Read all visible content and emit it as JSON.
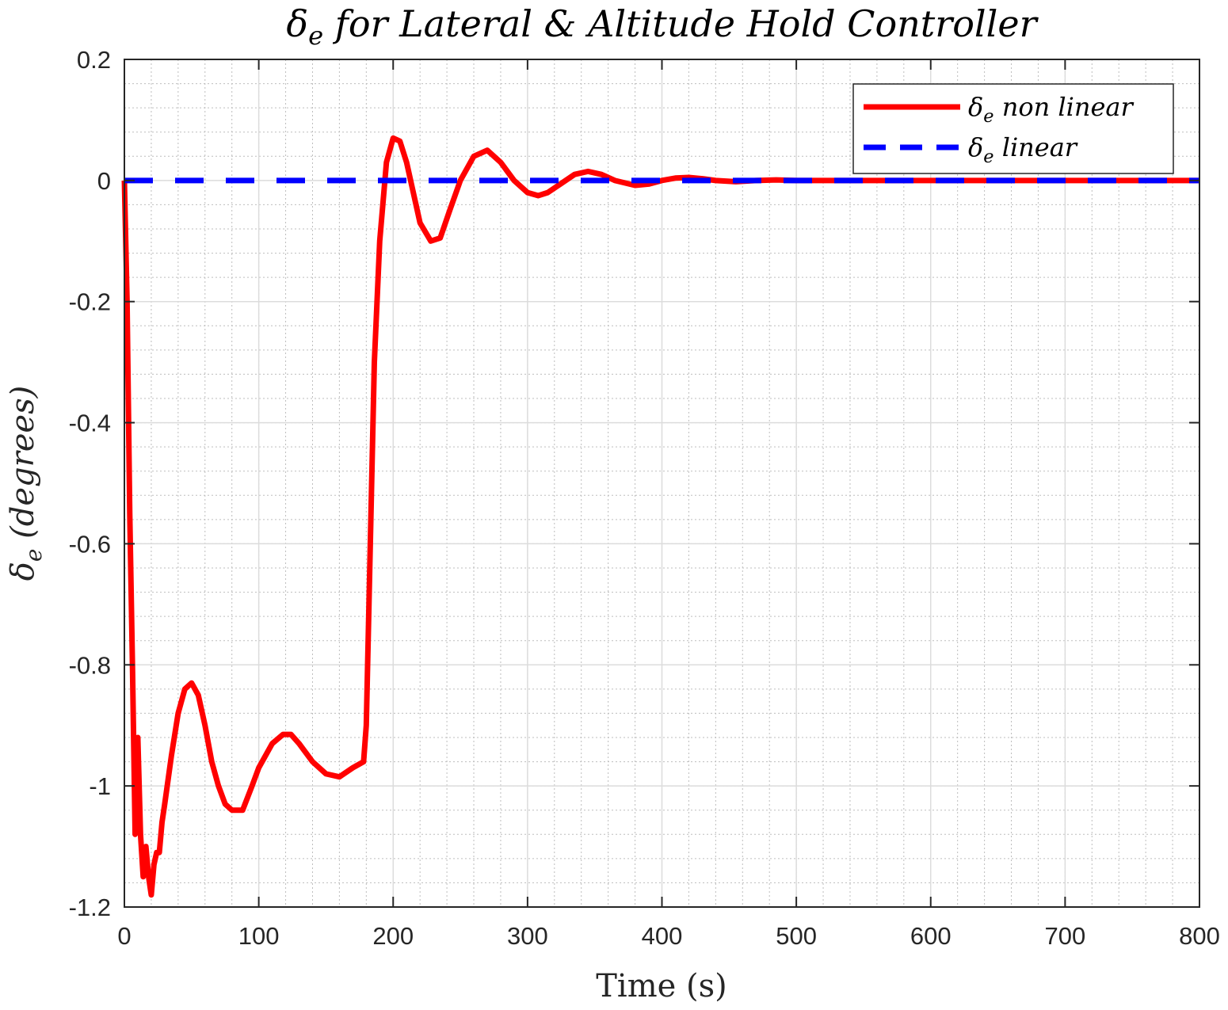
{
  "chart_data": {
    "type": "line",
    "title": {
      "symbol": "δ",
      "subscript": "e",
      "text": " for Lateral & Altitude Hold Controller"
    },
    "xlabel": "Time (s)",
    "ylabel": {
      "symbol": "δ",
      "subscript": "e",
      "text": " (degrees)"
    },
    "xlim": [
      0,
      800
    ],
    "ylim": [
      -1.2,
      0.2
    ],
    "xticks": [
      0,
      100,
      200,
      300,
      400,
      500,
      600,
      700,
      800
    ],
    "xtick_labels": [
      "0",
      "100",
      "200",
      "300",
      "400",
      "500",
      "600",
      "700",
      "800"
    ],
    "yticks": [
      0.2,
      0,
      -0.2,
      -0.4,
      -0.6,
      -0.8,
      -1,
      -1.2
    ],
    "ytick_labels": [
      "0.2",
      "0",
      "-0.2",
      "-0.4",
      "-0.6",
      "-0.8",
      "-1",
      "-1.2"
    ],
    "grid": true,
    "minor_grid": true,
    "legend_position": "top-right",
    "series": [
      {
        "name": "non linear",
        "legend_symbol": "δ",
        "legend_subscript": "e",
        "legend_text": " non linear",
        "color": "#ff0000",
        "style": "solid",
        "x": [
          0,
          2,
          4,
          6,
          8,
          10,
          12,
          14,
          16,
          18,
          20,
          22,
          24,
          26,
          28,
          30,
          35,
          40,
          45,
          50,
          55,
          60,
          65,
          70,
          75,
          80,
          88,
          95,
          100,
          110,
          118,
          124,
          130,
          140,
          150,
          160,
          170,
          178,
          180,
          183,
          186,
          190,
          195,
          200,
          205,
          210,
          215,
          220,
          228,
          235,
          242,
          250,
          260,
          270,
          280,
          290,
          300,
          308,
          315,
          325,
          335,
          345,
          355,
          365,
          380,
          390,
          400,
          410,
          420,
          430,
          440,
          455,
          470,
          485,
          500,
          520,
          540,
          560,
          600,
          650,
          700,
          750,
          800
        ],
        "y": [
          0,
          -0.2,
          -0.55,
          -0.8,
          -1.08,
          -0.92,
          -1.08,
          -1.15,
          -1.1,
          -1.15,
          -1.18,
          -1.13,
          -1.11,
          -1.11,
          -1.06,
          -1.03,
          -0.95,
          -0.88,
          -0.84,
          -0.83,
          -0.85,
          -0.9,
          -0.96,
          -1.0,
          -1.03,
          -1.04,
          -1.04,
          -1.0,
          -0.97,
          -0.93,
          -0.915,
          -0.915,
          -0.93,
          -0.96,
          -0.98,
          -0.985,
          -0.97,
          -0.96,
          -0.9,
          -0.6,
          -0.3,
          -0.1,
          0.03,
          0.07,
          0.065,
          0.03,
          -0.02,
          -0.07,
          -0.1,
          -0.095,
          -0.05,
          0.0,
          0.04,
          0.05,
          0.03,
          0.0,
          -0.02,
          -0.025,
          -0.02,
          -0.005,
          0.01,
          0.015,
          0.01,
          0.0,
          -0.008,
          -0.006,
          0.0,
          0.004,
          0.005,
          0.003,
          0.0,
          -0.002,
          0.0,
          0.001,
          0.0,
          0.0,
          0.0,
          0.0,
          0.0,
          0.0,
          0.0,
          0.0,
          0.0
        ]
      },
      {
        "name": "linear",
        "legend_symbol": "δ",
        "legend_subscript": "e",
        "legend_text": " linear",
        "color": "#0000ff",
        "style": "dashed",
        "x": [
          0,
          800
        ],
        "y": [
          0,
          0
        ]
      }
    ]
  }
}
